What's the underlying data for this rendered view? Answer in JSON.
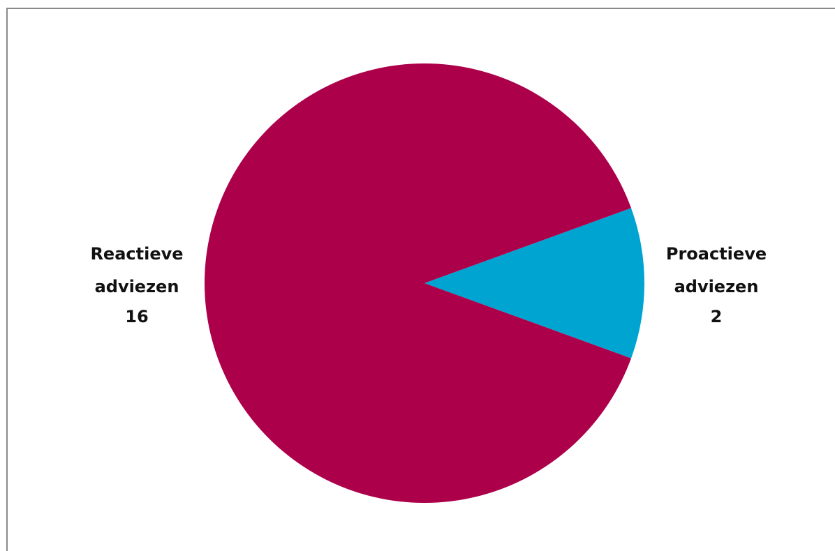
{
  "chart_data": {
    "type": "pie",
    "title": "",
    "slices": [
      {
        "label_lines": [
          "Reactieve",
          "adviezen"
        ],
        "value": 16,
        "value_label": "16",
        "color": "#ad004b",
        "label_side": "left"
      },
      {
        "label_lines": [
          "Proactieve",
          "adviezen"
        ],
        "value": 2,
        "value_label": "2",
        "color": "#00a4d1",
        "label_side": "right"
      }
    ],
    "legend": "none",
    "data_labels": "outside"
  }
}
